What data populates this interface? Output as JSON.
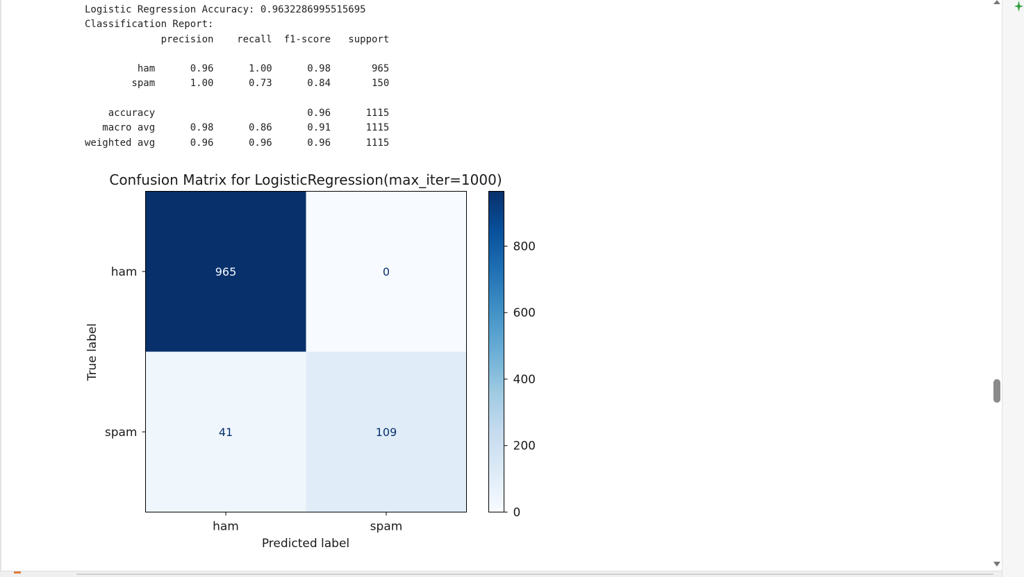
{
  "output": {
    "accuracy_line": "Logistic Regression Accuracy: 0.9632286995515695",
    "report_title": "Classification Report:",
    "report_headers": [
      "precision",
      "recall",
      "f1-score",
      "support"
    ],
    "report_rows": [
      {
        "label": "ham",
        "values": [
          "0.96",
          "1.00",
          "0.98",
          "965"
        ]
      },
      {
        "label": "spam",
        "values": [
          "1.00",
          "0.73",
          "0.84",
          "150"
        ]
      },
      {
        "label": "",
        "values": [
          "",
          "",
          "",
          ""
        ]
      },
      {
        "label": "accuracy",
        "values": [
          "",
          "",
          "0.96",
          "1115"
        ]
      },
      {
        "label": "macro avg",
        "values": [
          "0.98",
          "0.86",
          "0.91",
          "1115"
        ]
      },
      {
        "label": "weighted avg",
        "values": [
          "0.96",
          "0.96",
          "0.96",
          "1115"
        ]
      }
    ]
  },
  "chart_data": {
    "type": "heatmap",
    "title": "Confusion Matrix for LogisticRegression(max_iter=1000)",
    "xlabel": "Predicted label",
    "ylabel": "True label",
    "x_categories": [
      "ham",
      "spam"
    ],
    "y_categories": [
      "ham",
      "spam"
    ],
    "values": [
      [
        965,
        0
      ],
      [
        41,
        109
      ]
    ],
    "colormap": "Blues",
    "colorbar": {
      "ticks": [
        0,
        200,
        400,
        600,
        800
      ],
      "range": [
        0,
        965
      ]
    },
    "colors": {
      "dark": "#08306b",
      "light": "#f7fbff",
      "text_on_dark": "#f7fbff",
      "text_on_light": "#08306b"
    }
  },
  "ui": {
    "scroll_up_icon": "triangle-up",
    "scroll_down_icon": "triangle-down",
    "add_icon": "plus-star",
    "accent": "#2e9e3a"
  }
}
